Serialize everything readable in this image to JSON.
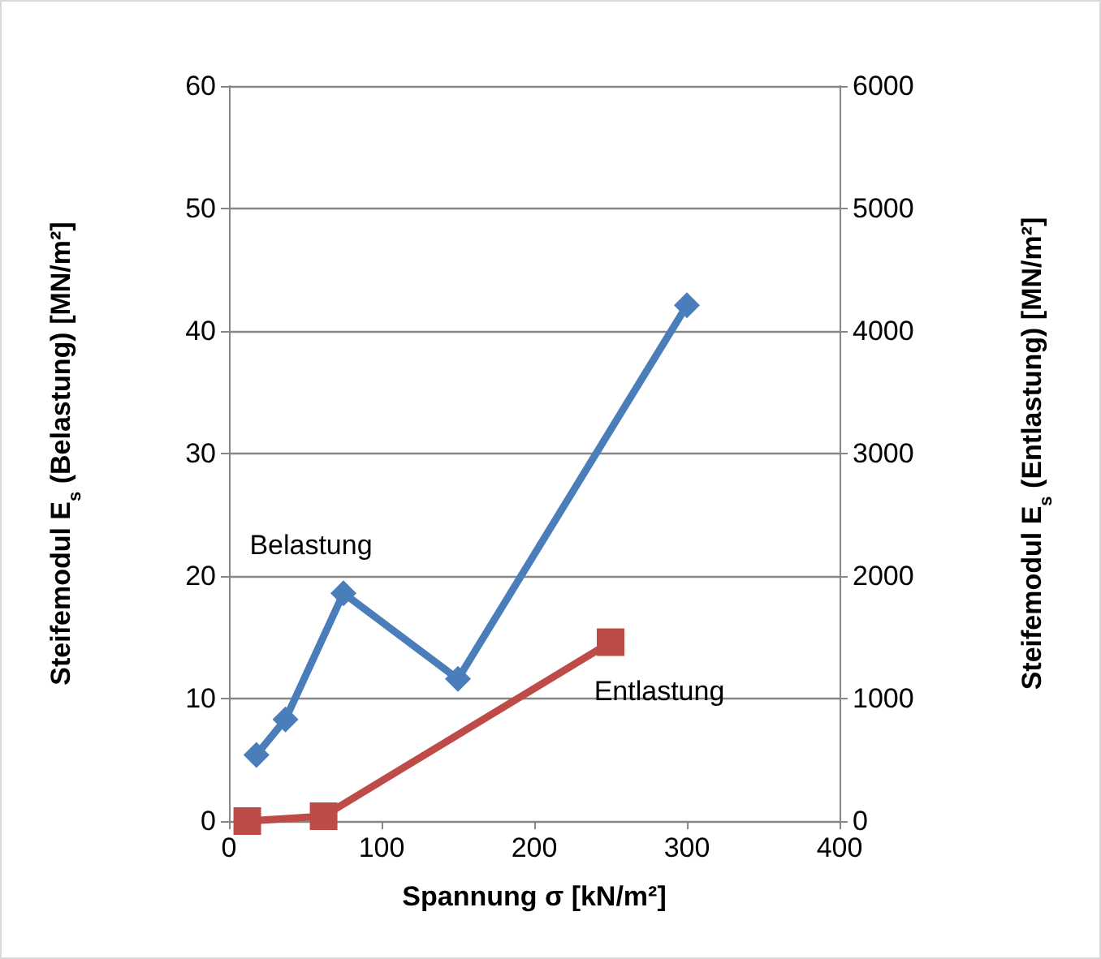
{
  "chart_data": {
    "type": "line",
    "xlabel": "Spannung σ [kN/m²]",
    "ylabel": "Steifemodul E$_{s}$ (Belastung) [MN/m²]",
    "y2label": "Steifemodul E$_{s}$ (Entlastung) [MN/m²]",
    "xlim": [
      0,
      400
    ],
    "xticks": [
      0,
      100,
      200,
      300,
      400
    ],
    "ylim": [
      0,
      60
    ],
    "yticks": [
      0,
      10,
      20,
      30,
      40,
      50,
      60
    ],
    "y2lim": [
      0,
      6000
    ],
    "y2ticks": [
      0,
      1000,
      2000,
      3000,
      4000,
      5000,
      6000
    ],
    "grid": "y",
    "legend": false,
    "line_style": "solid",
    "series": [
      {
        "name": "Belastung",
        "color": "#4a7ebb",
        "marker": "diamond",
        "x": [
          18,
          37,
          75,
          150,
          300
        ],
        "values": [
          5.4,
          8.3,
          18.6,
          11.6,
          42.1
        ]
      },
      {
        "name": "Entlastung",
        "color": "#be4b48",
        "marker": "square",
        "axis": "y2",
        "x": [
          12,
          62,
          250
        ],
        "values": [
          0,
          40,
          1460
        ]
      }
    ]
  }
}
